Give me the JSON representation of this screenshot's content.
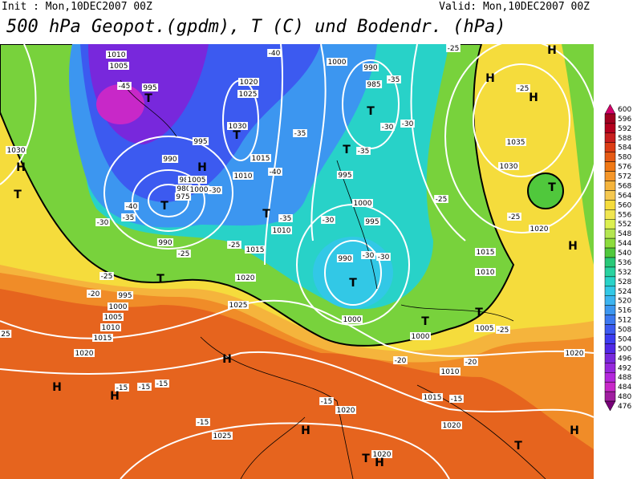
{
  "header": {
    "init": "Init : Mon,10DEC2007 00Z",
    "valid": "Valid: Mon,10DEC2007 00Z",
    "title": "500 hPa Geopot.(gpdm), T (C) und Bodendr. (hPa)"
  },
  "colorbar": {
    "ticks": [
      600,
      596,
      592,
      588,
      584,
      580,
      576,
      572,
      568,
      564,
      560,
      556,
      552,
      548,
      544,
      540,
      536,
      532,
      528,
      524,
      520,
      516,
      512,
      508,
      504,
      500,
      496,
      492,
      488,
      484,
      480,
      476
    ],
    "colors": [
      "#d4006a",
      "#a00020",
      "#b4001e",
      "#c81e1e",
      "#dc3c14",
      "#e65a14",
      "#f07814",
      "#f59628",
      "#f5b43c",
      "#f5c850",
      "#f5dc3c",
      "#f0e650",
      "#dcf050",
      "#b4e650",
      "#8cdc3c",
      "#50c83c",
      "#28c878",
      "#28d2a0",
      "#28d2c8",
      "#32c8e6",
      "#3cb4f0",
      "#3c96f0",
      "#3c78f0",
      "#3c5af0",
      "#3c3cf0",
      "#5028e6",
      "#7828dc",
      "#9628dc",
      "#b428dc",
      "#c828c8",
      "#a01ea0",
      "#780078"
    ]
  },
  "map": {
    "pressure_labels": [
      1010,
      1005,
      995,
      995,
      990,
      985,
      980,
      975,
      1005,
      1000,
      1020,
      1025,
      1030,
      1015,
      1010,
      1000,
      990,
      985,
      995,
      1000,
      995,
      990,
      1010,
      1015,
      990,
      1020,
      1025,
      995,
      1000,
      1005,
      1010,
      1015,
      1020,
      1000,
      1000,
      1005,
      1010,
      1015,
      1020,
      1025,
      1020,
      1020,
      1030,
      1035,
      1030,
      1020,
      1010,
      1015,
      1020
    ],
    "temperature_labels": [
      -45,
      -40,
      -35,
      -30,
      -25,
      -20,
      -30,
      -40,
      -35,
      -40,
      -35,
      -30,
      -30,
      -30,
      -25,
      -35,
      -30,
      -30,
      -35,
      -25,
      -25,
      -25,
      -25,
      -25,
      -20,
      -20,
      -15,
      -15,
      -15,
      -15,
      -15,
      -15,
      -25,
      25
    ],
    "centers": [
      "T",
      "T",
      "H",
      "T",
      "T",
      "H",
      "T",
      "T",
      "T",
      "T",
      "T",
      "T",
      "T",
      "H",
      "T",
      "H",
      "H",
      "H",
      "H",
      "H",
      "T",
      "T",
      "H",
      "H",
      "H",
      "H"
    ]
  }
}
